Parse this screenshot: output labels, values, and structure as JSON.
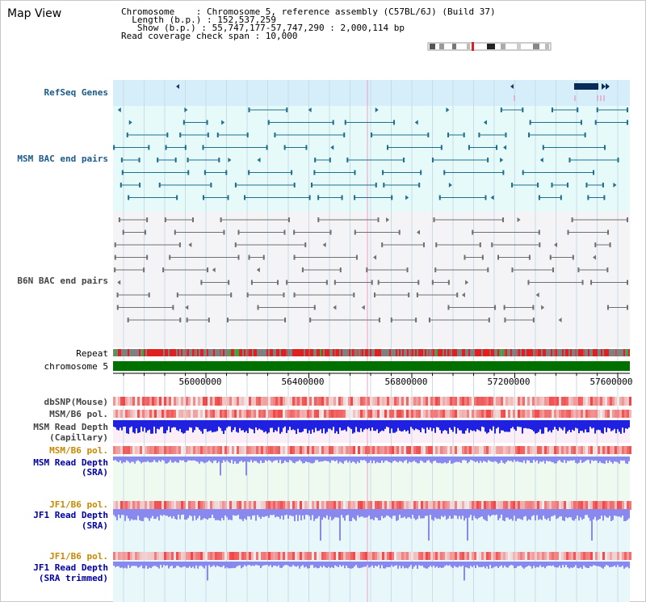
{
  "title": "Map View",
  "info": {
    "line1": "Chromosome    : Chromosome 5, reference assembly (C57BL/6J) (Build 37)",
    "line2": "  Length (b.p.) : 152,537,259",
    "line3": "   Show (b.p.) : 55,747,177-57,747,290 : 2,000,114 bp",
    "line4": "Read coverage check span : 10,000"
  },
  "tracks": {
    "refseq": "RefSeq Genes",
    "msm_bac": "MSM BAC end pairs",
    "b6n_bac": "B6N BAC end pairs",
    "repeat": "Repeat",
    "chromosome": "chromosome 5",
    "dbsnp": "dbSNP(Mouse)",
    "msm_b6_pol_1": "MSM/B6 pol.",
    "msm_read_depth_cap_1": "MSM Read Depth",
    "msm_read_depth_cap_2": "(Capillary)",
    "msm_b6_pol_2": "MSM/B6 pol.",
    "msm_read_depth_sra_1": "MSM Read Depth",
    "msm_read_depth_sra_2": "(SRA)",
    "jf1_b6_pol_1": "JF1/B6 pol.",
    "jf1_read_depth_sra_1": "JF1 Read Depth",
    "jf1_read_depth_sra_2": "(SRA)",
    "jf1_b6_pol_2": "JF1/B6 pol.",
    "jf1_read_depth_trim_1": "JF1 Read Depth",
    "jf1_read_depth_trim_2": "(SRA trimmed)"
  },
  "axis": {
    "ticks": [
      "56000000",
      "56400000",
      "56800000",
      "57200000",
      "57600000"
    ]
  },
  "colors": {
    "refseq_bg": "#d6eefa",
    "msm_bg": "#e6fafa",
    "b6n_bg": "#f0f0f4",
    "msm_feature": "#1e6e8c",
    "b6n_feature": "#707070",
    "chromosome": "#007000",
    "depth_blue": "#2020e0",
    "depth_light": "#8888ee",
    "snp_red": "#e83030"
  }
}
